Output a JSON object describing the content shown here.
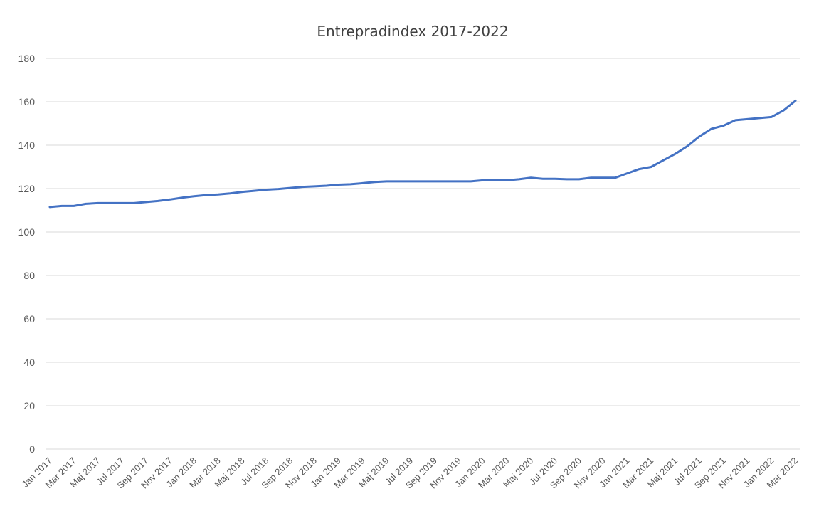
{
  "chart_data": {
    "type": "line",
    "title": "Entrepradindex 2017-2022",
    "xlabel": "",
    "ylabel": "",
    "ylim": [
      0,
      180
    ],
    "yticks": [
      0,
      20,
      40,
      60,
      80,
      100,
      120,
      140,
      160,
      180
    ],
    "grid": true,
    "legend": "none",
    "x": [
      "Jan 2017",
      "Feb 2017",
      "Mar 2017",
      "Apr 2017",
      "Maj 2017",
      "Jun 2017",
      "Jul 2017",
      "Aug 2017",
      "Sep 2017",
      "Okt 2017",
      "Nov 2017",
      "Dec 2017",
      "Jan 2018",
      "Feb 2018",
      "Mar 2018",
      "Apr 2018",
      "Maj 2018",
      "Jun 2018",
      "Jul 2018",
      "Aug 2018",
      "Sep 2018",
      "Okt 2018",
      "Nov 2018",
      "Dec 2018",
      "Jan 2019",
      "Feb 2019",
      "Mar 2019",
      "Apr 2019",
      "Maj 2019",
      "Jun 2019",
      "Jul 2019",
      "Aug 2019",
      "Sep 2019",
      "Okt 2019",
      "Nov 2019",
      "Dec 2019",
      "Jan 2020",
      "Feb 2020",
      "Mar 2020",
      "Apr 2020",
      "Maj 2020",
      "Jun 2020",
      "Jul 2020",
      "Aug 2020",
      "Sep 2020",
      "Okt 2020",
      "Nov 2020",
      "Dec 2020",
      "Jan 2021",
      "Feb 2021",
      "Mar 2021",
      "Apr 2021",
      "Maj 2021",
      "Jun 2021",
      "Jul 2021",
      "Aug 2021",
      "Sep 2021",
      "Okt 2021",
      "Nov 2021",
      "Dec 2021",
      "Jan 2022",
      "Feb 2022",
      "Mar 2022"
    ],
    "x_tick_labels": [
      "Jan 2017",
      "Mar 2017",
      "Maj 2017",
      "Jul 2017",
      "Sep 2017",
      "Nov 2017",
      "Jan 2018",
      "Mar 2018",
      "Maj 2018",
      "Jul 2018",
      "Sep 2018",
      "Nov 2018",
      "Jan 2019",
      "Mar 2019",
      "Maj 2019",
      "Jul 2019",
      "Sep 2019",
      "Nov 2019",
      "Jan 2020",
      "Mar 2020",
      "Maj 2020",
      "Jul 2020",
      "Sep 2020",
      "Nov 2020",
      "Jan 2021",
      "Mar 2021",
      "Maj 2021",
      "Jul 2021",
      "Sep 2021",
      "Nov 2021",
      "Jan 2022",
      "Mar 2022"
    ],
    "series": [
      {
        "color": "#4472c4",
        "values": [
          111.5,
          112,
          112,
          113,
          113.3,
          113.3,
          113.3,
          113.3,
          113.8,
          114.3,
          115,
          115.8,
          116.5,
          117,
          117.3,
          117.8,
          118.5,
          119,
          119.5,
          119.8,
          120.3,
          120.8,
          121,
          121.3,
          121.8,
          122,
          122.5,
          123,
          123.3,
          123.3,
          123.3,
          123.3,
          123.3,
          123.3,
          123.3,
          123.3,
          123.8,
          123.8,
          123.8,
          124.3,
          125,
          124.5,
          124.5,
          124.3,
          124.3,
          125,
          125,
          125,
          127,
          129,
          130,
          133,
          136,
          139.5,
          144,
          147.5,
          149,
          151.5,
          152,
          152.5,
          153,
          156,
          160.5
        ]
      }
    ]
  }
}
